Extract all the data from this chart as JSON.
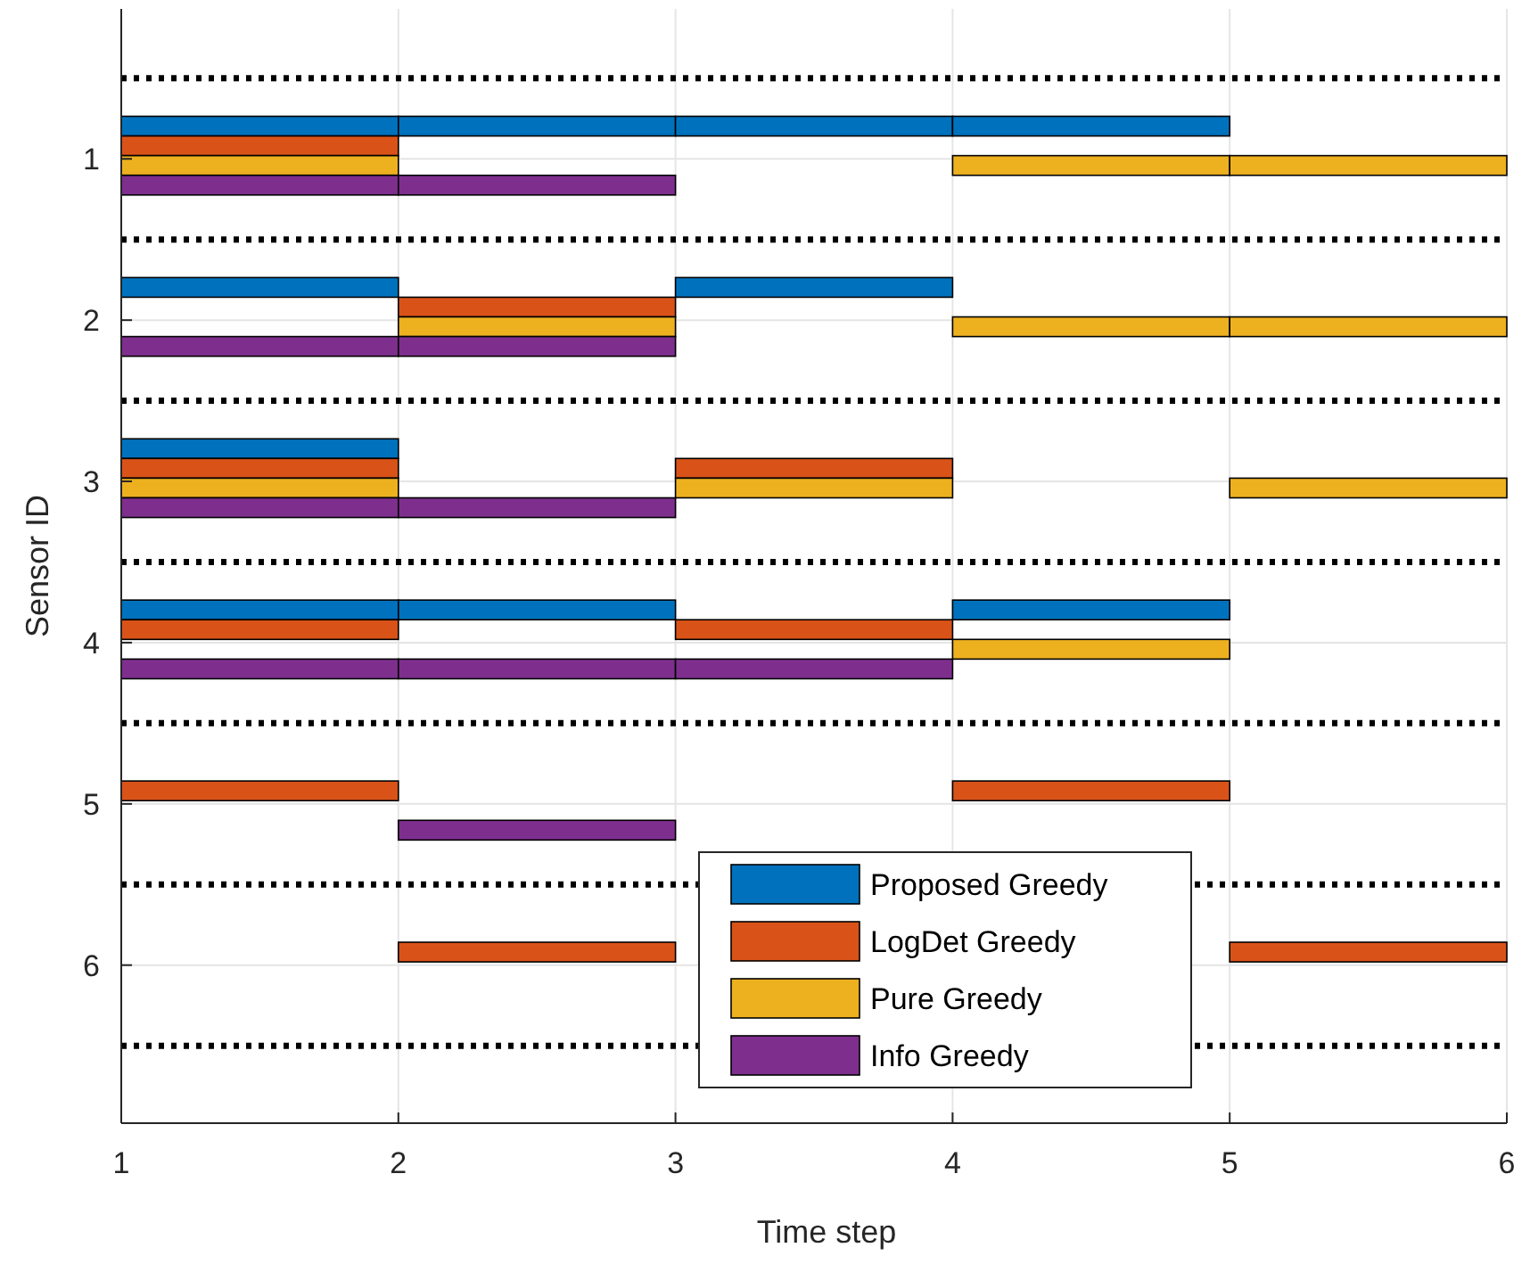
{
  "chart_data": {
    "type": "bar",
    "orientation": "horizontal",
    "xlabel": "Time step",
    "ylabel": "Sensor ID",
    "categories": [
      "1",
      "2",
      "3",
      "4",
      "5",
      "6"
    ],
    "xlim": [
      1,
      6
    ],
    "xticks": [
      1,
      2,
      3,
      4,
      5,
      6
    ],
    "grid": true,
    "legend": "bottom",
    "series": [
      {
        "name": "Proposed Greedy",
        "color": "#0072bd",
        "values": [
          1,
          1,
          1,
          1,
          null,
          null
        ],
        "base": [
          1,
          1,
          1,
          1,
          null,
          null
        ]
      },
      {
        "color": "#0072bd",
        "values": [
          1,
          null,
          null,
          1,
          null,
          null
        ],
        "base": [
          2,
          null,
          null,
          2,
          null,
          null
        ]
      },
      {
        "color": "#0072bd",
        "values": [
          1,
          1,
          null,
          null,
          null,
          null
        ],
        "base": [
          3,
          3,
          null,
          null,
          null,
          null
        ]
      },
      {
        "color": "#0072bd",
        "values": [
          1,
          null,
          null,
          1,
          null,
          null
        ],
        "base": [
          4,
          null,
          null,
          4,
          null,
          null
        ]
      },
      {
        "name": "LogDet Greedy",
        "color": "#d95319",
        "values": [
          1,
          null,
          1,
          1,
          1,
          null
        ],
        "base": [
          1,
          null,
          1,
          1,
          1,
          null
        ]
      },
      {
        "color": "#d95319",
        "values": [
          null,
          1,
          null,
          null,
          null,
          1
        ],
        "base": [
          null,
          2,
          null,
          null,
          null,
          2
        ]
      },
      {
        "color": "#d95319",
        "values": [
          null,
          null,
          1,
          1,
          null,
          null
        ],
        "base": [
          null,
          null,
          3,
          3,
          null,
          null
        ]
      },
      {
        "color": "#d95319",
        "values": [
          null,
          null,
          null,
          null,
          1,
          null
        ],
        "base": [
          null,
          null,
          null,
          null,
          4,
          null
        ]
      },
      {
        "color": "#d95319",
        "values": [
          null,
          null,
          null,
          null,
          null,
          1
        ],
        "base": [
          null,
          null,
          null,
          null,
          null,
          5
        ]
      },
      {
        "name": "Pure Greedy",
        "color": "#edb120",
        "values": [
          1,
          null,
          1,
          null,
          null,
          null
        ],
        "base": [
          1,
          null,
          1,
          null,
          null,
          null
        ]
      },
      {
        "color": "#edb120",
        "values": [
          null,
          1,
          null,
          null,
          null,
          null
        ],
        "base": [
          null,
          2,
          null,
          null,
          null,
          null
        ]
      },
      {
        "color": "#edb120",
        "values": [
          null,
          null,
          1,
          null,
          null,
          null
        ],
        "base": [
          null,
          null,
          3,
          null,
          null,
          null
        ]
      },
      {
        "color": "#edb120",
        "values": [
          1,
          1,
          null,
          1,
          null,
          null
        ],
        "base": [
          4,
          4,
          null,
          4,
          null,
          null
        ]
      },
      {
        "color": "#edb120",
        "values": [
          1,
          1,
          1,
          null,
          null,
          null
        ],
        "base": [
          5,
          5,
          5,
          null,
          null,
          null
        ]
      },
      {
        "name": "Info Greedy",
        "color": "#7e2f8e",
        "values": [
          1,
          1,
          1,
          1,
          null,
          null
        ],
        "base": [
          1,
          1,
          1,
          1,
          null,
          null
        ]
      },
      {
        "color": "#7e2f8e",
        "values": [
          1,
          1,
          1,
          1,
          1,
          null
        ],
        "base": [
          2,
          2,
          2,
          2,
          2,
          null
        ]
      },
      {
        "color": "#7e2f8e",
        "values": [
          null,
          null,
          null,
          1,
          null,
          null
        ],
        "base": [
          null,
          null,
          null,
          3,
          null,
          null
        ]
      }
    ]
  }
}
